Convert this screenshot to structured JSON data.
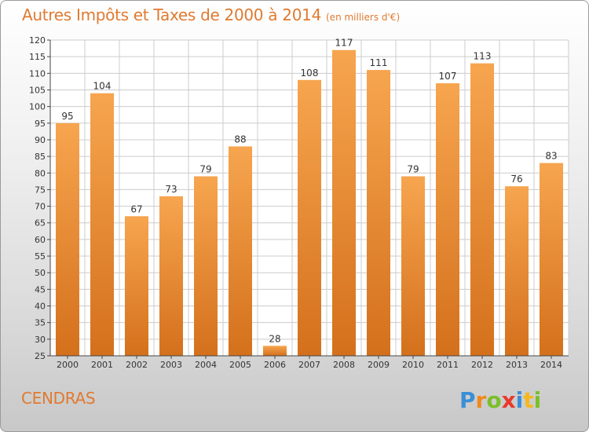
{
  "title": "Autres Impôts et Taxes de 2000 à 2014",
  "subtitle": "(en milliers d'€)",
  "commune": "CENDRAS",
  "logo_text": "Proxiti",
  "colors": {
    "bar_light": "#f7a54f",
    "bar_dark": "#d4701c",
    "title": "#e07a30",
    "grid": "#cccccc",
    "axis": "#444444"
  },
  "chart_data": {
    "type": "bar",
    "categories": [
      "2000",
      "2001",
      "2002",
      "2003",
      "2004",
      "2005",
      "2006",
      "2007",
      "2008",
      "2009",
      "2010",
      "2011",
      "2012",
      "2013",
      "2014"
    ],
    "values": [
      95,
      104,
      67,
      73,
      79,
      88,
      28,
      108,
      117,
      111,
      79,
      107,
      113,
      76,
      83
    ],
    "ylim": [
      25,
      120
    ],
    "yticks": [
      25,
      30,
      35,
      40,
      45,
      50,
      55,
      60,
      65,
      70,
      75,
      80,
      85,
      90,
      95,
      100,
      105,
      110,
      115,
      120
    ],
    "grid": true,
    "data_labels": true,
    "legend": "none"
  }
}
